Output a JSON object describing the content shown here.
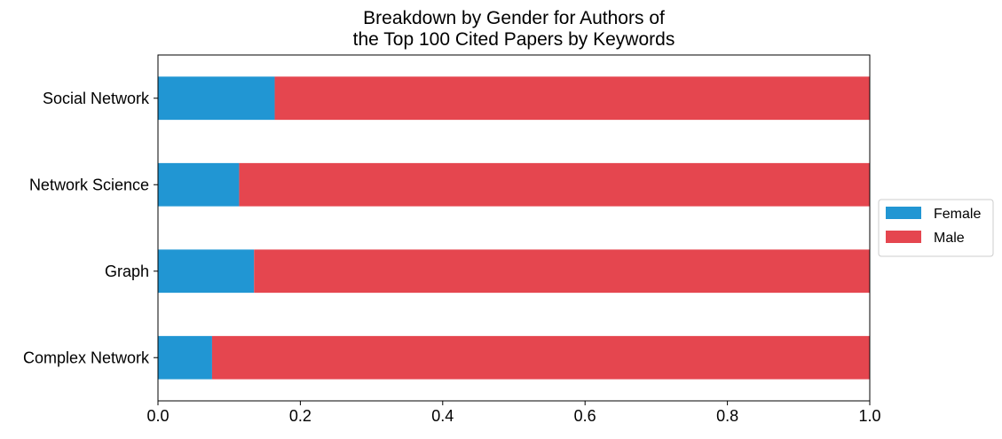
{
  "chart_data": {
    "type": "bar",
    "orientation": "horizontal",
    "stacked": true,
    "title": [
      "Breakdown by Gender for Authors of",
      "the Top 100 Cited Papers by Keywords"
    ],
    "xlabel": "",
    "ylabel": "",
    "xlim": [
      0.0,
      1.0
    ],
    "x_ticks": [
      "0.0",
      "0.2",
      "0.4",
      "0.6",
      "0.8",
      "1.0"
    ],
    "grid": false,
    "legend_position": "center-right-outside",
    "categories": [
      "Social Network",
      "Network Science",
      "Graph",
      "Complex Network"
    ],
    "series": [
      {
        "name": "Female",
        "color": "#2196d3",
        "values": [
          0.164,
          0.114,
          0.135,
          0.076
        ]
      },
      {
        "name": "Male",
        "color": "#e5464f",
        "values": [
          0.836,
          0.886,
          0.865,
          0.924
        ]
      }
    ]
  }
}
